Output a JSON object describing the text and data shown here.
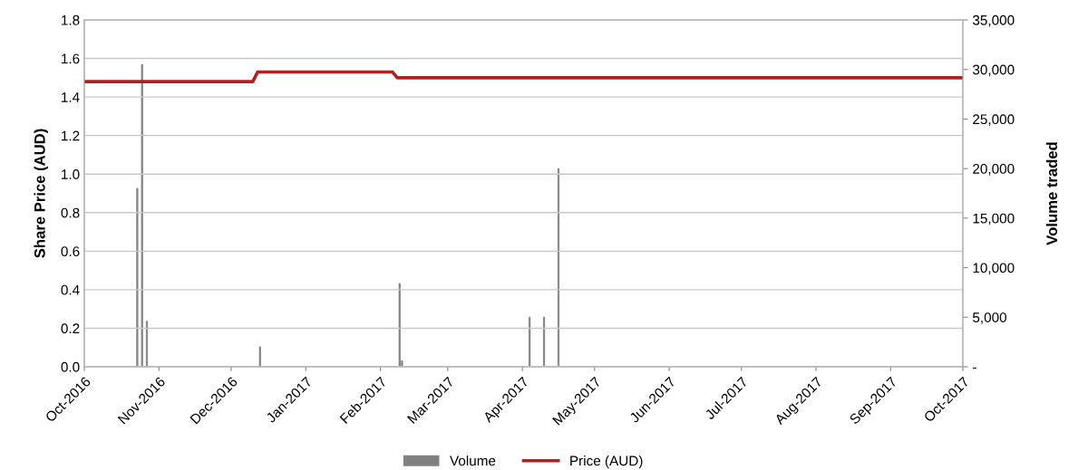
{
  "chart_data": {
    "type": "line",
    "ylabel": "Share Price (AUD)",
    "y2label": "Volume traded",
    "xlim": [
      "2016-10-01",
      "2017-10-01"
    ],
    "xticks": [
      {
        "value": "2016-10-01",
        "label": "Oct-2016"
      },
      {
        "value": "2016-11-01",
        "label": "Nov-2016"
      },
      {
        "value": "2016-12-01",
        "label": "Dec-2016"
      },
      {
        "value": "2017-01-01",
        "label": "Jan-2017"
      },
      {
        "value": "2017-02-01",
        "label": "Feb-2017"
      },
      {
        "value": "2017-03-01",
        "label": "Mar-2017"
      },
      {
        "value": "2017-04-01",
        "label": "Apr-2017"
      },
      {
        "value": "2017-05-01",
        "label": "May-2017"
      },
      {
        "value": "2017-06-01",
        "label": "Jun-2017"
      },
      {
        "value": "2017-07-01",
        "label": "Jul-2017"
      },
      {
        "value": "2017-08-01",
        "label": "Aug-2017"
      },
      {
        "value": "2017-09-01",
        "label": "Sep-2017"
      },
      {
        "value": "2017-10-01",
        "label": "Oct-2017"
      }
    ],
    "ylim": [
      0,
      1.8
    ],
    "yticks": [
      {
        "value": 0,
        "label": "0.0"
      },
      0.2,
      0.4,
      0.6,
      0.8,
      {
        "value": 1,
        "label": "1.0"
      },
      1.2,
      1.4,
      1.6,
      1.8
    ],
    "y2lim": [
      0,
      35000
    ],
    "y2ticks": [
      {
        "value": 0,
        "label": "-"
      },
      {
        "value": 5000,
        "label": "5,000"
      },
      {
        "value": 10000,
        "label": "10,000"
      },
      {
        "value": 15000,
        "label": "15,000"
      },
      {
        "value": 20000,
        "label": "20,000"
      },
      {
        "value": 25000,
        "label": "25,000"
      },
      {
        "value": 30000,
        "label": "30,000"
      },
      {
        "value": 35000,
        "label": "35,000"
      }
    ],
    "grid": "y",
    "legend": "bottom",
    "series": [
      {
        "name": "Volume",
        "type": "bar",
        "axis": "y2",
        "color": "#808080",
        "x": [
          "2016-10-23",
          "2016-10-25",
          "2016-10-27",
          "2016-12-13",
          "2017-02-09",
          "2017-02-10",
          "2017-04-04",
          "2017-04-10",
          "2017-04-16"
        ],
        "values": [
          18000,
          30500,
          4600,
          2000,
          8400,
          600,
          5000,
          5000,
          20000
        ]
      },
      {
        "name": "Price (AUD)",
        "axis": "y",
        "color": "#b02222",
        "x": [
          "2016-10-01",
          "2016-12-10",
          "2016-12-12",
          "2017-02-06",
          "2017-02-08",
          "2017-10-01"
        ],
        "values": [
          1.48,
          1.48,
          1.53,
          1.53,
          1.5,
          1.5
        ]
      }
    ]
  }
}
